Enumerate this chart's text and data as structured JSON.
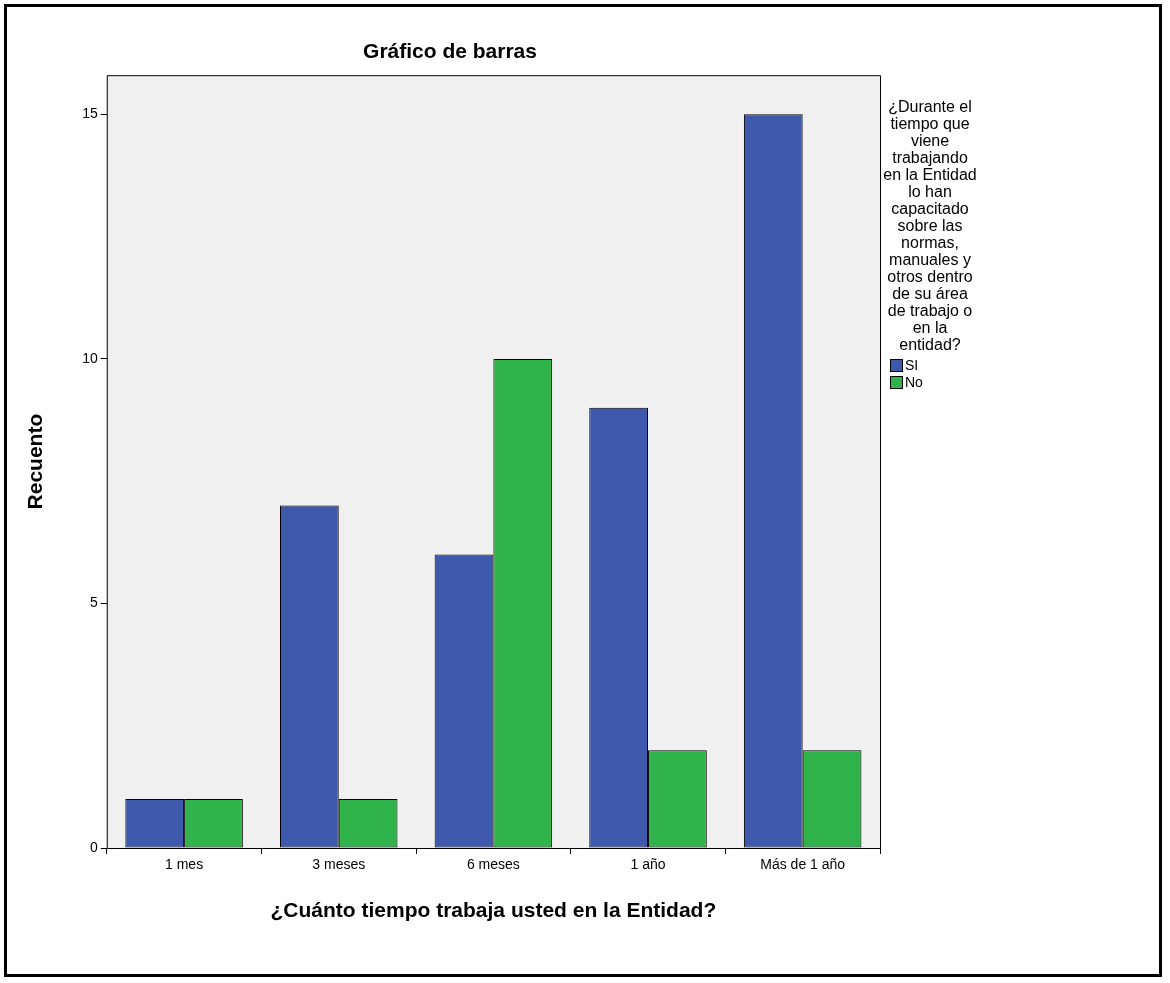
{
  "chart_data": {
    "type": "bar",
    "title": "Gráfico de barras",
    "xlabel": "¿Cuánto tiempo trabaja usted en la Entidad?",
    "ylabel": "Recuento",
    "legend_title": "¿Durante el tiempo que viene trabajando en la Entidad lo han capacitado sobre las normas, manuales y otros dentro de su área de trabajo o en la entidad?",
    "legend": "right",
    "grid": false,
    "categories": [
      "1 mes",
      "3 meses",
      "6 meses",
      "1 año",
      "Más de 1 año"
    ],
    "series": [
      {
        "name": "SI",
        "color": "#3e58ac",
        "values": [
          1,
          7,
          6,
          9,
          15
        ]
      },
      {
        "name": "No",
        "color": "#2fb34a",
        "values": [
          1,
          1,
          10,
          2,
          2
        ]
      }
    ],
    "ylim": [
      0,
      15.8
    ],
    "yticks": [
      0,
      5,
      10,
      15
    ]
  }
}
